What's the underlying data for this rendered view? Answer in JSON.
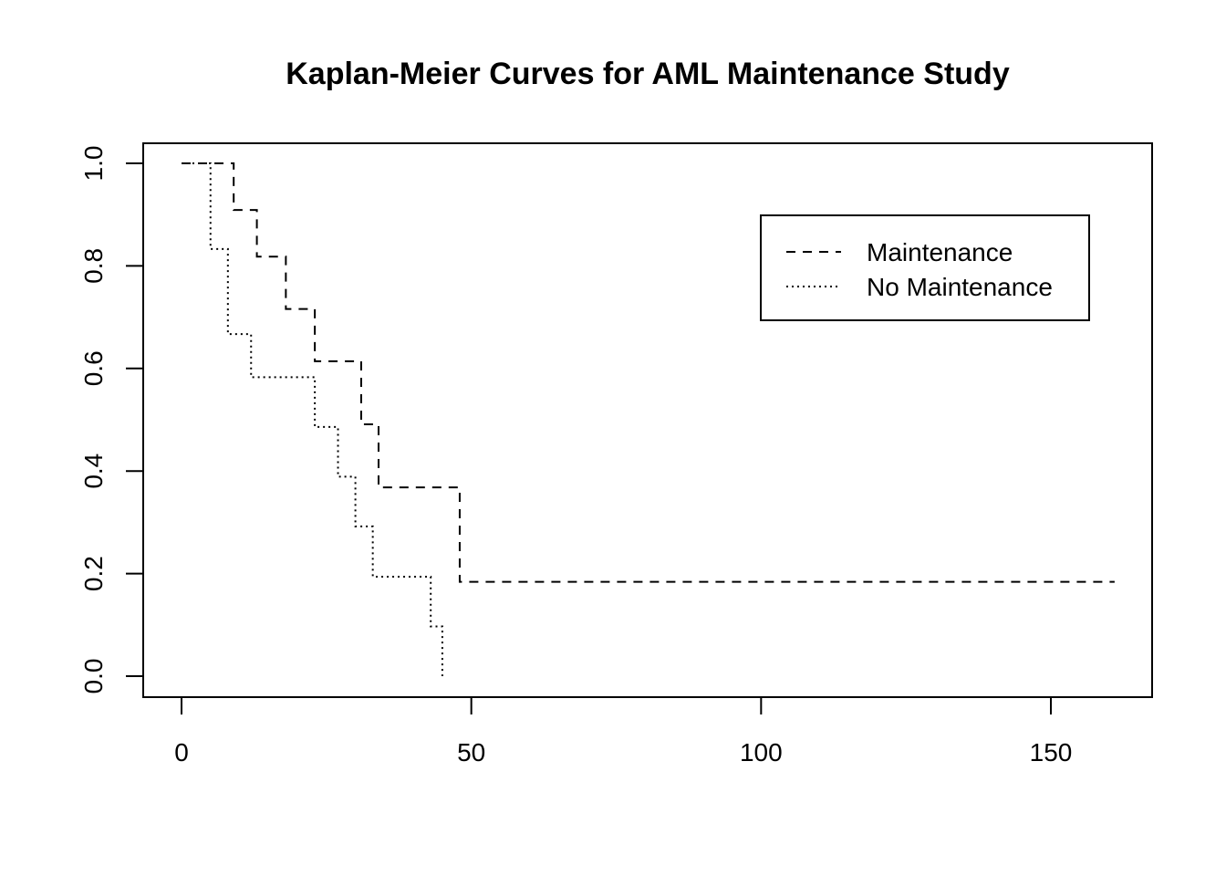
{
  "chart_data": {
    "type": "line",
    "step": true,
    "title": "Kaplan-Meier Curves for AML Maintenance Study",
    "xlabel": "",
    "ylabel": "",
    "xlim": [
      0,
      161
    ],
    "ylim": [
      0,
      1
    ],
    "x_ticks": [
      0,
      50,
      100,
      150
    ],
    "y_ticks": [
      0.0,
      0.2,
      0.4,
      0.6,
      0.8,
      1.0
    ],
    "x_tick_labels": [
      "0",
      "50",
      "100",
      "150"
    ],
    "y_tick_labels": [
      "0.0",
      "0.2",
      "0.4",
      "0.6",
      "0.8",
      "1.0"
    ],
    "grid": false,
    "legend_position": "top-right",
    "series": [
      {
        "name": "Maintenance",
        "line_style": "dashed",
        "color": "#000000",
        "x": [
          0,
          9,
          13,
          18,
          23,
          31,
          34,
          48,
          161
        ],
        "y": [
          1.0,
          0.909,
          0.818,
          0.716,
          0.614,
          0.491,
          0.368,
          0.184,
          0.184
        ]
      },
      {
        "name": "No Maintenance",
        "line_style": "dotted",
        "color": "#000000",
        "x": [
          0,
          5,
          8,
          12,
          23,
          27,
          30,
          33,
          43,
          45
        ],
        "y": [
          1.0,
          0.833,
          0.667,
          0.583,
          0.486,
          0.389,
          0.292,
          0.194,
          0.097,
          0.0
        ]
      }
    ]
  }
}
